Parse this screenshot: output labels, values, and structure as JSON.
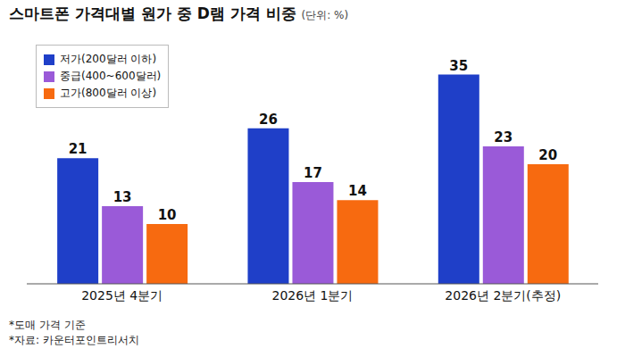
{
  "chart_data": {
    "type": "bar",
    "title": "스마트폰 가격대별 원가 중 D램 가격 비중",
    "subtitle": "(단위: %)",
    "categories": [
      "2025년 4분기",
      "2026년 1분기",
      "2026년 2분기(추정)"
    ],
    "series": [
      {
        "name": "저가(200달러 이하)",
        "color": "#1f3fc8",
        "values": [
          21,
          26,
          35
        ]
      },
      {
        "name": "중급(400~600달러)",
        "color": "#9a5ad8",
        "values": [
          13,
          17,
          23
        ]
      },
      {
        "name": "고가(800달러 이상)",
        "color": "#f76a10",
        "values": [
          10,
          14,
          20
        ]
      }
    ],
    "ylim": [
      0,
      40
    ],
    "tick_labels": "x",
    "data_labels": true,
    "legend": "top-left",
    "annotations": [
      "*도매 가격 기준",
      "*자료: 카운터포인트리서치"
    ]
  }
}
